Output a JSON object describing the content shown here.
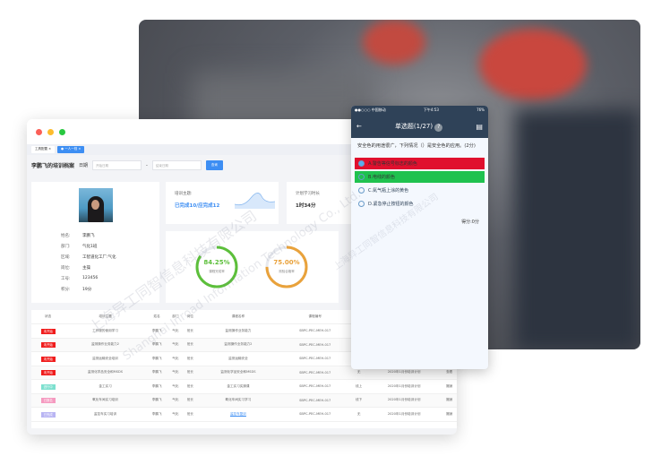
{
  "tabs": [
    {
      "label": "工具配置"
    },
    {
      "label": "一人一档"
    }
  ],
  "toolbar": {
    "title": "李鹏飞的培训档案",
    "date_label": "日期",
    "start_placeholder": "开始日期",
    "separator": "-",
    "end_placeholder": "结束日期",
    "query_label": "查询"
  },
  "profile": {
    "fields": [
      {
        "k": "姓名:",
        "v": "李鹏飞"
      },
      {
        "k": "部门:",
        "v": "气化1班"
      },
      {
        "k": "区域:",
        "v": "工智道化工厂:气化"
      },
      {
        "k": "岗位:",
        "v": "主操"
      },
      {
        "k": "工号:",
        "v": "123456"
      },
      {
        "k": "积分:",
        "v": "19分"
      }
    ]
  },
  "summary": {
    "topic_label": "培训主题:",
    "topic_value": "已完成10/应完成12",
    "hours_label": "计划学习时长",
    "hours_value": "1时34分"
  },
  "rings": [
    {
      "value": "84.25%",
      "label": "课程完成率",
      "pct": 84.25,
      "color": "#5cbf3a"
    },
    {
      "value": "75.00%",
      "label": "测验合格率",
      "pct": 75,
      "color": "#e9a23b"
    }
  ],
  "table": {
    "headers": [
      "状态",
      "培训主题",
      "姓名",
      "部门",
      "岗位",
      "课程名称",
      "课程编号",
      "方式",
      "计划",
      "操作"
    ],
    "rows": [
      [
        "未开始",
        "工作服的使用学习",
        "李鹏飞",
        "气化",
        "班长",
        "监测操作业务能力",
        "SBPC-PEC-MEH-017",
        "",
        "",
        ""
      ],
      [
        "未开始",
        "监测操作业务能力2",
        "李鹏飞",
        "气化",
        "班长",
        "监测操作业务能力2",
        "SBPC-PEC-MEH-017",
        "",
        "",
        ""
      ],
      [
        "未开始",
        "监测运输安全培训",
        "李鹏飞",
        "气化",
        "班长",
        "监测运输安全",
        "SBPC-PEC-MEH-017",
        "",
        "",
        ""
      ],
      [
        "未开始",
        "监测化学品安全和MSDS",
        "李鹏飞",
        "气化",
        "班长",
        "监测化学品安全和MSDS",
        "SBPC-PEC-MEH-017",
        "无",
        "2020年1月份培训计划",
        "查看"
      ],
      [
        "进行中",
        "金工实习",
        "李鹏飞",
        "气化",
        "班长",
        "金工实习实操课",
        "SBPC-PEC-MEH-017",
        "线上",
        "2020年1月份培训计划",
        "撤销"
      ],
      [
        "已报名",
        "氧化车间实习培训",
        "李鹏飞",
        "气化",
        "班长",
        "氧化车间实习学习",
        "SBPC-PEC-MEH-017",
        "线下",
        "2020年1月份培训计划",
        "撤销"
      ],
      [
        "已完成",
        "监控车实习培训",
        "李鹏飞",
        "气化",
        "班长",
        "监控车复训",
        "SBPC-PEC-MEH-017",
        "无",
        "2020年1月份培训计划",
        "撤销"
      ]
    ]
  },
  "status_colors": {
    "未开始": "#f01c1c",
    "进行中": "#7de0cf",
    "已报名": "#f59ac0",
    "已完成": "#b9b5f3"
  },
  "phone": {
    "carrier": "●●○○○ 中国移动",
    "time": "下午4:53",
    "battery": "76%",
    "title": "单选题(1/27)",
    "question": "安全色的用途很广，下列情况（）是安全色的应用。(2分)",
    "options": [
      {
        "label": "A.警告等信号标志的颜色",
        "bg": "#e0102e"
      },
      {
        "label": "B.电线的颜色",
        "bg": "#1fc24f"
      },
      {
        "label": "C.氮气瓶上涂的黄色",
        "bg": ""
      },
      {
        "label": "D.紧急停止按钮的颜色",
        "bg": ""
      }
    ],
    "score": "得分:0分"
  },
  "watermark": [
    "上海异工同智信息科技有限公司",
    "Shanghai Inroad Information Technology Co., Ltd."
  ]
}
